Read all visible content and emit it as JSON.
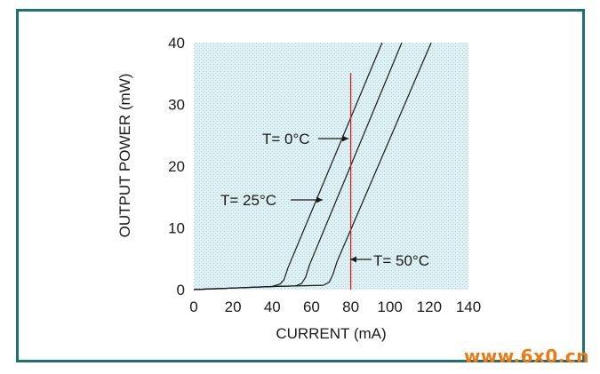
{
  "chart_data": {
    "type": "line",
    "title": "",
    "xlabel": "CURRENT (mA)",
    "ylabel": "OUTPUT POWER (mW)",
    "xlim": [
      0,
      140
    ],
    "ylim": [
      0,
      40
    ],
    "x_ticks": [
      0,
      20,
      40,
      60,
      80,
      100,
      120,
      140
    ],
    "y_ticks": [
      0,
      10,
      20,
      30,
      40
    ],
    "grid": false,
    "plot_background": "dotted light cyan",
    "series": [
      {
        "name": "T= 0°C",
        "points": [
          [
            0,
            0
          ],
          [
            40,
            0.5
          ],
          [
            44,
            0.9
          ],
          [
            46,
            1.6
          ],
          [
            48,
            3.5
          ],
          [
            96,
            40
          ]
        ]
      },
      {
        "name": "T= 25°C",
        "points": [
          [
            0,
            0
          ],
          [
            40,
            0.5
          ],
          [
            52,
            0.6
          ],
          [
            55,
            1.0
          ],
          [
            57,
            2.0
          ],
          [
            59,
            4.0
          ],
          [
            106,
            40
          ]
        ]
      },
      {
        "name": "T= 50°C",
        "points": [
          [
            0,
            0
          ],
          [
            40,
            0.5
          ],
          [
            66,
            0.7
          ],
          [
            69,
            1.2
          ],
          [
            71,
            2.5
          ],
          [
            73,
            4.5
          ],
          [
            121,
            40
          ]
        ]
      }
    ],
    "reference_line": {
      "x": 80,
      "color": "#cc2222"
    },
    "annotations": [
      {
        "text": "T= 0°C",
        "series": 0
      },
      {
        "text": "T= 25°C",
        "series": 1
      },
      {
        "text": "T= 50°C",
        "series": 2
      }
    ],
    "colors": {
      "curve": "#1a1a1a",
      "frame": "#1f6f73",
      "plot_bg": "#dff1f4"
    }
  },
  "watermark": "www.6x0.cn"
}
